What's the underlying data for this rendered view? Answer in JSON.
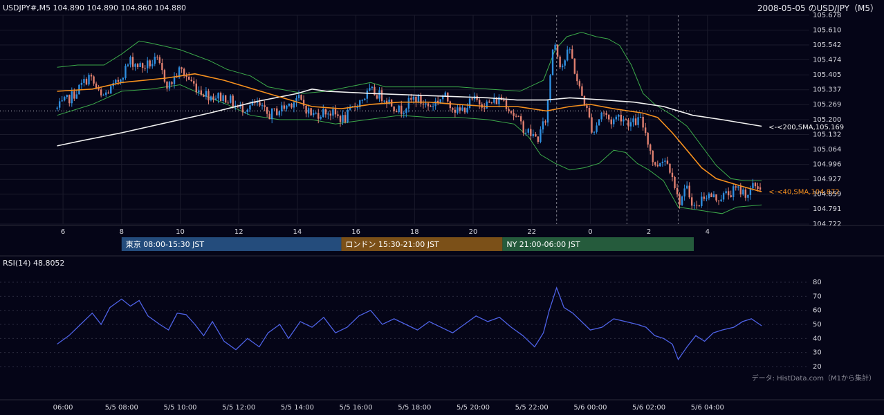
{
  "header": {
    "symbol_ohlc": "USDJPY#,M5 104.890 104.890 104.860 104.880",
    "title": "2008-05-05 のUSD/JPY（M5）"
  },
  "chart_data": [
    {
      "type": "candlestick",
      "title": "2008-05-05 のUSD/JPY（M5）",
      "symbol": "USDJPY#,M5",
      "last_bar": {
        "open": 104.89,
        "high": 104.89,
        "low": 104.86,
        "close": 104.88
      },
      "ylim": [
        104.722,
        105.678
      ],
      "y_ticks": [
        105.678,
        105.61,
        105.542,
        105.474,
        105.405,
        105.337,
        105.269,
        105.2,
        105.132,
        105.064,
        104.996,
        104.927,
        104.859,
        104.791,
        104.722
      ],
      "x_tick_hours": [
        6,
        8,
        10,
        12,
        14,
        16,
        18,
        20,
        22,
        0,
        2,
        4
      ],
      "x_tick_labels": [
        "6",
        "8",
        "10",
        "12",
        "14",
        "16",
        "18",
        "20",
        "22",
        "0",
        "2",
        "4"
      ],
      "reference_price": 105.24,
      "path_points": [
        [
          5.8,
          105.25
        ],
        [
          6.4,
          105.32
        ],
        [
          6.9,
          105.4
        ],
        [
          7.3,
          105.3
        ],
        [
          7.8,
          105.36
        ],
        [
          8.3,
          105.47
        ],
        [
          8.7,
          105.44
        ],
        [
          9.2,
          105.47
        ],
        [
          9.6,
          105.35
        ],
        [
          10.0,
          105.43
        ],
        [
          10.6,
          105.34
        ],
        [
          11.0,
          105.31
        ],
        [
          11.6,
          105.3
        ],
        [
          12.0,
          105.25
        ],
        [
          12.6,
          105.27
        ],
        [
          13.0,
          105.22
        ],
        [
          13.6,
          105.26
        ],
        [
          14.0,
          105.3
        ],
        [
          14.5,
          105.22
        ],
        [
          15.0,
          105.24
        ],
        [
          15.6,
          105.2
        ],
        [
          16.0,
          105.27
        ],
        [
          16.5,
          105.33
        ],
        [
          17.0,
          105.3
        ],
        [
          17.5,
          105.24
        ],
        [
          18.0,
          105.3
        ],
        [
          18.5,
          105.26
        ],
        [
          19.0,
          105.31
        ],
        [
          19.5,
          105.23
        ],
        [
          20.0,
          105.29
        ],
        [
          20.5,
          105.27
        ],
        [
          21.0,
          105.3
        ],
        [
          21.4,
          105.22
        ],
        [
          21.8,
          105.15
        ],
        [
          22.2,
          105.11
        ],
        [
          22.5,
          105.21
        ],
        [
          22.75,
          105.58
        ],
        [
          23.0,
          105.44
        ],
        [
          23.3,
          105.52
        ],
        [
          23.6,
          105.35
        ],
        [
          23.8,
          105.28
        ],
        [
          24.1,
          105.14
        ],
        [
          24.4,
          105.24
        ],
        [
          24.7,
          105.19
        ],
        [
          25.0,
          105.22
        ],
        [
          25.4,
          105.18
        ],
        [
          25.7,
          105.2
        ],
        [
          25.9,
          105.14
        ],
        [
          26.2,
          104.98
        ],
        [
          26.5,
          105.03
        ],
        [
          26.8,
          104.96
        ],
        [
          27.0,
          104.82
        ],
        [
          27.3,
          104.88
        ],
        [
          27.6,
          104.79
        ],
        [
          27.9,
          104.86
        ],
        [
          28.3,
          104.84
        ],
        [
          28.7,
          104.86
        ],
        [
          29.0,
          104.88
        ],
        [
          29.4,
          104.86
        ],
        [
          29.6,
          104.9
        ],
        [
          29.85,
          104.88
        ]
      ],
      "bollinger_upper": [
        [
          5.8,
          105.44
        ],
        [
          6.5,
          105.45
        ],
        [
          7.4,
          105.45
        ],
        [
          8.0,
          105.5
        ],
        [
          8.6,
          105.56
        ],
        [
          9.0,
          105.55
        ],
        [
          10.0,
          105.52
        ],
        [
          11.0,
          105.47
        ],
        [
          11.6,
          105.43
        ],
        [
          12.4,
          105.4
        ],
        [
          13.0,
          105.35
        ],
        [
          14.2,
          105.32
        ],
        [
          15.0,
          105.33
        ],
        [
          16.5,
          105.37
        ],
        [
          17.0,
          105.35
        ],
        [
          18.0,
          105.35
        ],
        [
          19.5,
          105.35
        ],
        [
          20.5,
          105.34
        ],
        [
          21.6,
          105.33
        ],
        [
          22.4,
          105.38
        ],
        [
          22.8,
          105.52
        ],
        [
          23.2,
          105.58
        ],
        [
          23.7,
          105.6
        ],
        [
          24.2,
          105.58
        ],
        [
          24.6,
          105.57
        ],
        [
          25.0,
          105.54
        ],
        [
          25.4,
          105.45
        ],
        [
          25.8,
          105.32
        ],
        [
          26.2,
          105.27
        ],
        [
          26.8,
          105.22
        ],
        [
          27.3,
          105.17
        ],
        [
          27.8,
          105.08
        ],
        [
          28.3,
          104.99
        ],
        [
          28.8,
          104.93
        ],
        [
          29.3,
          104.92
        ],
        [
          29.85,
          104.92
        ]
      ],
      "bollinger_lower": [
        [
          5.8,
          105.22
        ],
        [
          7.0,
          105.27
        ],
        [
          8.0,
          105.33
        ],
        [
          9.0,
          105.34
        ],
        [
          10.0,
          105.36
        ],
        [
          11.0,
          105.3
        ],
        [
          11.6,
          105.27
        ],
        [
          12.4,
          105.22
        ],
        [
          13.4,
          105.2
        ],
        [
          14.5,
          105.2
        ],
        [
          15.3,
          105.18
        ],
        [
          15.8,
          105.19
        ],
        [
          17.5,
          105.22
        ],
        [
          18.5,
          105.21
        ],
        [
          19.5,
          105.21
        ],
        [
          20.5,
          105.2
        ],
        [
          21.4,
          105.18
        ],
        [
          21.9,
          105.12
        ],
        [
          22.3,
          105.04
        ],
        [
          22.8,
          105.0
        ],
        [
          23.3,
          104.97
        ],
        [
          23.8,
          104.98
        ],
        [
          24.3,
          105.0
        ],
        [
          24.8,
          105.06
        ],
        [
          25.2,
          105.05
        ],
        [
          25.6,
          105.0
        ],
        [
          26.0,
          104.97
        ],
        [
          26.5,
          104.92
        ],
        [
          27.0,
          104.8
        ],
        [
          27.5,
          104.79
        ],
        [
          28.0,
          104.78
        ],
        [
          28.5,
          104.77
        ],
        [
          29.0,
          104.8
        ],
        [
          29.85,
          104.81
        ]
      ],
      "series": [
        {
          "name": "SMA(200)",
          "label": "<-<200,SMA,105.169",
          "last_value": 105.169,
          "color": "#f2f2f2",
          "points": [
            [
              5.8,
              105.08
            ],
            [
              6.5,
              105.1
            ],
            [
              8.0,
              105.14
            ],
            [
              10.0,
              105.2
            ],
            [
              11.0,
              105.23
            ],
            [
              12.5,
              105.28
            ],
            [
              14.0,
              105.32
            ],
            [
              14.5,
              105.34
            ],
            [
              15.0,
              105.33
            ],
            [
              16.5,
              105.32
            ],
            [
              18.5,
              105.31
            ],
            [
              20.5,
              105.3
            ],
            [
              21.5,
              105.29
            ],
            [
              22.5,
              105.29
            ],
            [
              23.3,
              105.3
            ],
            [
              24.5,
              105.29
            ],
            [
              25.5,
              105.28
            ],
            [
              26.5,
              105.26
            ],
            [
              27.5,
              105.22
            ],
            [
              28.5,
              105.2
            ],
            [
              29.85,
              105.17
            ]
          ]
        },
        {
          "name": "SMA(40)",
          "label": "<-<40,SMA,104.872",
          "last_value": 104.872,
          "color": "#f5901e",
          "points": [
            [
              5.8,
              105.33
            ],
            [
              7.0,
              105.34
            ],
            [
              8.0,
              105.37
            ],
            [
              9.5,
              105.39
            ],
            [
              10.5,
              105.41
            ],
            [
              11.5,
              105.38
            ],
            [
              12.5,
              105.34
            ],
            [
              13.5,
              105.3
            ],
            [
              14.5,
              105.26
            ],
            [
              15.5,
              105.25
            ],
            [
              16.5,
              105.27
            ],
            [
              17.5,
              105.28
            ],
            [
              18.5,
              105.28
            ],
            [
              19.5,
              105.27
            ],
            [
              20.5,
              105.26
            ],
            [
              21.5,
              105.26
            ],
            [
              22.5,
              105.24
            ],
            [
              23.3,
              105.26
            ],
            [
              24.0,
              105.27
            ],
            [
              24.8,
              105.25
            ],
            [
              25.8,
              105.23
            ],
            [
              26.3,
              105.21
            ],
            [
              26.8,
              105.14
            ],
            [
              27.3,
              105.06
            ],
            [
              27.8,
              104.98
            ],
            [
              28.3,
              104.93
            ],
            [
              28.8,
              104.91
            ],
            [
              29.3,
              104.89
            ],
            [
              29.85,
              104.87
            ]
          ]
        }
      ],
      "session_legend": [
        {
          "label": "東京 08:00-15:30 JST",
          "start_hour": 8.0,
          "end_hour": 15.5,
          "color": "#244c7c"
        },
        {
          "label": "ロンドン 15:30-21:00 JST",
          "start_hour": 15.5,
          "end_hour": 21.0,
          "color": "#7b5018"
        },
        {
          "label": "NY 21:00-06:00 JST",
          "start_hour": 21.0,
          "end_hour": 30.0,
          "color": "#255b3c"
        }
      ],
      "event_marker_hours": [
        22.85,
        25.25,
        27.0
      ],
      "colors": {
        "up": "#2f8fe0",
        "down": "#e08070",
        "band": "#3caa4a",
        "background": "#050517"
      }
    },
    {
      "type": "line",
      "name": "RSI(14)",
      "label": "RSI(14) 48.8052",
      "last_value": 48.8052,
      "ylim": [
        20,
        80
      ],
      "y_ticks": [
        80,
        70,
        60,
        50,
        40,
        30,
        20
      ],
      "color": "#4e62e6",
      "points": [
        [
          5.8,
          36
        ],
        [
          6.2,
          42
        ],
        [
          6.6,
          50
        ],
        [
          7.0,
          58
        ],
        [
          7.3,
          50
        ],
        [
          7.6,
          62
        ],
        [
          8.0,
          68
        ],
        [
          8.3,
          63
        ],
        [
          8.6,
          67
        ],
        [
          8.9,
          56
        ],
        [
          9.3,
          50
        ],
        [
          9.6,
          46
        ],
        [
          9.9,
          58
        ],
        [
          10.2,
          57
        ],
        [
          10.5,
          50
        ],
        [
          10.8,
          42
        ],
        [
          11.1,
          52
        ],
        [
          11.5,
          38
        ],
        [
          11.9,
          32
        ],
        [
          12.3,
          40
        ],
        [
          12.7,
          34
        ],
        [
          13.0,
          44
        ],
        [
          13.4,
          50
        ],
        [
          13.7,
          40
        ],
        [
          14.1,
          52
        ],
        [
          14.5,
          48
        ],
        [
          14.9,
          55
        ],
        [
          15.3,
          44
        ],
        [
          15.7,
          48
        ],
        [
          16.1,
          56
        ],
        [
          16.5,
          60
        ],
        [
          16.9,
          50
        ],
        [
          17.3,
          54
        ],
        [
          17.7,
          50
        ],
        [
          18.1,
          46
        ],
        [
          18.5,
          52
        ],
        [
          18.9,
          48
        ],
        [
          19.3,
          44
        ],
        [
          19.7,
          50
        ],
        [
          20.1,
          56
        ],
        [
          20.5,
          52
        ],
        [
          20.9,
          55
        ],
        [
          21.3,
          48
        ],
        [
          21.7,
          42
        ],
        [
          22.1,
          34
        ],
        [
          22.4,
          44
        ],
        [
          22.6,
          60
        ],
        [
          22.85,
          76
        ],
        [
          23.1,
          62
        ],
        [
          23.4,
          58
        ],
        [
          23.7,
          52
        ],
        [
          24.0,
          46
        ],
        [
          24.4,
          48
        ],
        [
          24.8,
          54
        ],
        [
          25.2,
          52
        ],
        [
          25.6,
          50
        ],
        [
          25.9,
          48
        ],
        [
          26.2,
          42
        ],
        [
          26.5,
          40
        ],
        [
          26.8,
          36
        ],
        [
          27.0,
          25
        ],
        [
          27.3,
          34
        ],
        [
          27.6,
          42
        ],
        [
          27.9,
          38
        ],
        [
          28.2,
          44
        ],
        [
          28.5,
          46
        ],
        [
          28.9,
          48
        ],
        [
          29.2,
          52
        ],
        [
          29.5,
          54
        ],
        [
          29.85,
          49
        ]
      ]
    }
  ],
  "bottom_axis": {
    "labels": [
      "06:00",
      "5/5 08:00",
      "5/5 10:00",
      "5/5 12:00",
      "5/5 14:00",
      "5/5 16:00",
      "5/5 18:00",
      "5/5 20:00",
      "5/5 22:00",
      "5/6 00:00",
      "5/6 02:00",
      "5/6 04:00"
    ],
    "hours": [
      6,
      8,
      10,
      12,
      14,
      16,
      18,
      20,
      22,
      24,
      26,
      28
    ]
  },
  "footer": {
    "source": "データ: HistData.com（M1から集計）"
  }
}
